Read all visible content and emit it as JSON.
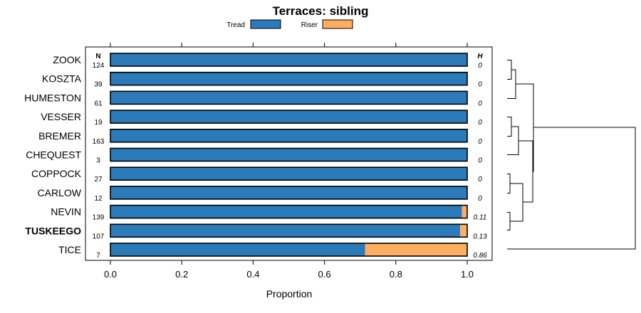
{
  "chart_data": {
    "type": "bar",
    "orientation": "horizontal",
    "stacked": true,
    "title": "Terraces: sibling",
    "xlabel": "Proportion",
    "ylabel": "",
    "xlim": [
      0,
      1
    ],
    "xticks": [
      "0.0",
      "0.2",
      "0.4",
      "0.6",
      "0.8",
      "1.0"
    ],
    "xtick_values": [
      0,
      0.2,
      0.4,
      0.6,
      0.8,
      1.0
    ],
    "legend": {
      "placement": "top",
      "entries": [
        {
          "name": "Tread",
          "color": "#2B7BBA"
        },
        {
          "name": "Riser",
          "color": "#FDAE61"
        }
      ]
    },
    "n_header": "N",
    "h_header": "H",
    "categories": [
      "ZOOK",
      "KOSZTA",
      "HUMESTON",
      "VESSER",
      "BREMER",
      "CHEQUEST",
      "COPPOCK",
      "CARLOW",
      "NEVIN",
      "TUSKEEGO",
      "TICE"
    ],
    "highlighted": "TUSKEEGO",
    "n": [
      "124",
      "39",
      "61",
      "19",
      "163",
      "3",
      "27",
      "12",
      "139",
      "107",
      "7"
    ],
    "h": [
      "0",
      "0",
      "0",
      "0",
      "0",
      "0",
      "0",
      "0",
      "0.11",
      "0.13",
      "0.86"
    ],
    "series": [
      {
        "name": "Tread",
        "color": "#2B7BBA",
        "values": [
          1,
          1,
          1,
          1,
          1,
          1,
          1,
          1,
          0.985,
          0.98,
          0.714
        ]
      },
      {
        "name": "Riser",
        "color": "#FDAE61",
        "values": [
          0,
          0,
          0,
          0,
          0,
          0,
          0,
          0,
          0.015,
          0.02,
          0.286
        ]
      }
    ],
    "dendrogram": "hierarchical clustering of rows"
  }
}
